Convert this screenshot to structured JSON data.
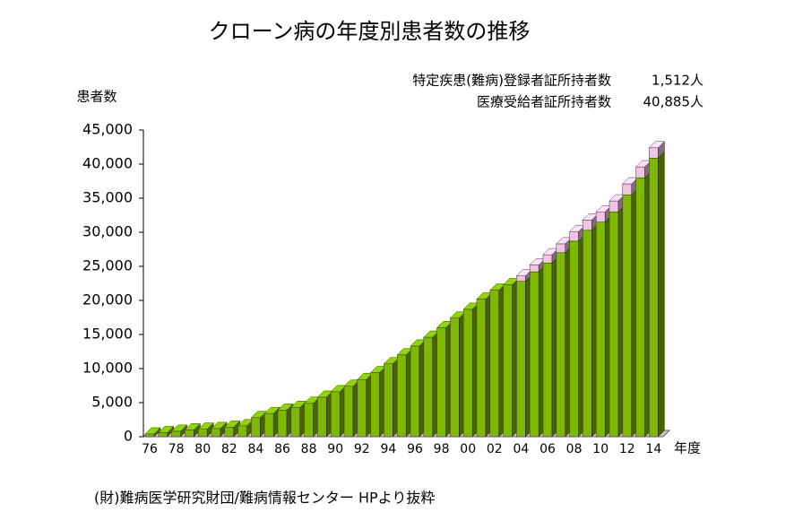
{
  "chart_data": {
    "type": "bar3d_stacked",
    "title": "クローン病の年度別患者数の推移",
    "y_label": "患者数",
    "x_label": "年度",
    "source": "(財)難病医学研究財団/難病情報センター HPより抜粋",
    "annotations": [
      {
        "label": "特定疾患(難病)登録者証所持者数",
        "value": "1,512人"
      },
      {
        "label": "医療受給者証所持者数",
        "value": "40,885人"
      }
    ],
    "categories": [
      "76",
      null,
      "78",
      null,
      "80",
      null,
      "82",
      null,
      "84",
      null,
      "86",
      null,
      "88",
      null,
      "90",
      null,
      "92",
      null,
      "94",
      null,
      "96",
      null,
      "98",
      null,
      "00",
      null,
      "02",
      null,
      "04",
      null,
      "06",
      null,
      "08",
      null,
      "10",
      null,
      "12",
      null,
      "14"
    ],
    "series": [
      {
        "name": "医療受給者証所持者数",
        "color": "#7fb800",
        "values": [
          400,
          600,
          800,
          1000,
          1100,
          1200,
          1400,
          1600,
          2800,
          3400,
          3900,
          4300,
          4900,
          5800,
          6600,
          7400,
          8400,
          9400,
          10700,
          12000,
          13300,
          14600,
          16000,
          17400,
          18700,
          20200,
          21500,
          22300,
          22800,
          24200,
          25500,
          27000,
          28700,
          30300,
          31500,
          33000,
          35500,
          38000,
          40885
        ]
      },
      {
        "name": "特定疾患(難病)登録者証所持者数",
        "color": "#f2c4e4",
        "values": [
          0,
          0,
          0,
          0,
          0,
          0,
          0,
          0,
          0,
          0,
          0,
          0,
          0,
          0,
          0,
          0,
          0,
          0,
          0,
          0,
          0,
          0,
          0,
          0,
          0,
          0,
          0,
          0,
          800,
          1000,
          1200,
          1300,
          1400,
          1500,
          1500,
          1600,
          1600,
          1600,
          1512
        ]
      }
    ],
    "ylim": [
      0,
      45000
    ],
    "yticks": [
      0,
      {
        "value": 5000,
        "label": "5,000"
      },
      {
        "value": 10000,
        "label": "10,000"
      },
      {
        "value": 15000,
        "label": "15,000"
      },
      {
        "value": 20000,
        "label": "20,000"
      },
      {
        "value": 25000,
        "label": "25,000"
      },
      {
        "value": 30000,
        "label": "30,000"
      },
      {
        "value": 35000,
        "label": "35,000"
      },
      {
        "value": 40000,
        "label": "40,000"
      },
      {
        "value": 45000,
        "label": "45,000"
      }
    ],
    "grid": false
  }
}
